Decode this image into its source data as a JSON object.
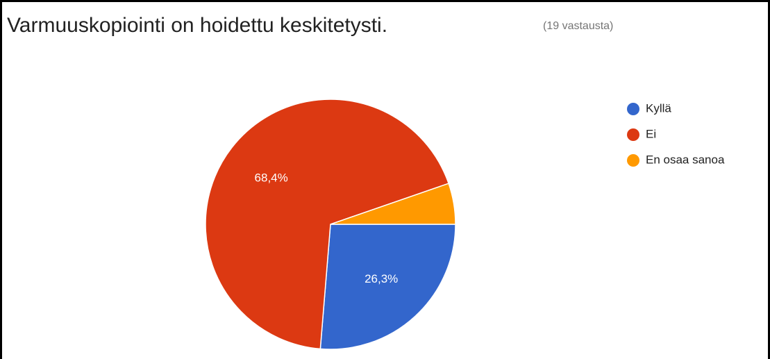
{
  "chart_data": {
    "type": "pie",
    "title": "Varmuuskopiointi on hoidettu keskitetysti.",
    "subtitle": "(19 vastausta)",
    "categories": [
      "Kyllä",
      "Ei",
      "En osaa sanoa"
    ],
    "values": [
      26.3,
      68.4,
      5.3
    ],
    "value_labels": [
      "26,3%",
      "68,4%",
      null
    ],
    "colors": [
      "#3366cc",
      "#dc3912",
      "#ff9900"
    ],
    "legend": "right"
  }
}
